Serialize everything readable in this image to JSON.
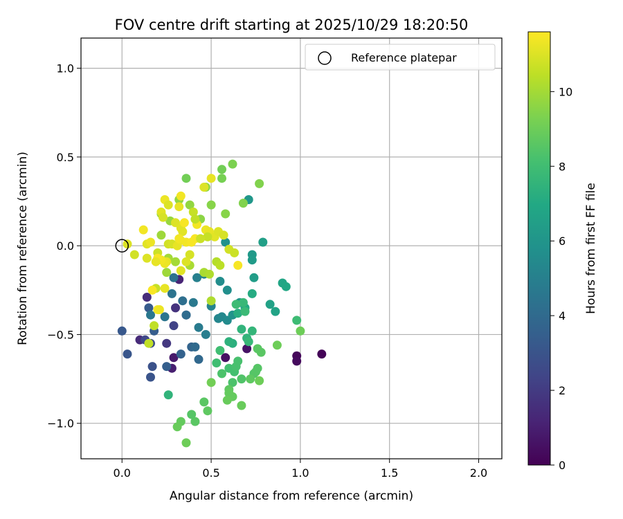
{
  "chart_data": {
    "type": "scatter",
    "title": "FOV centre drift starting at 2025/10/29 18:20:50",
    "xlabel": "Angular distance from reference (arcmin)",
    "ylabel": "Rotation from reference (arcmin)",
    "xlim": [
      -0.23,
      2.13
    ],
    "ylim": [
      -1.2,
      1.17
    ],
    "xticks": [
      0.0,
      0.5,
      1.0,
      1.5,
      2.0
    ],
    "xtick_labels": [
      "0.0",
      "0.5",
      "1.0",
      "1.5",
      "2.0"
    ],
    "yticks": [
      1.0,
      0.5,
      0.0,
      -0.5,
      -1.0
    ],
    "ytick_labels": [
      "1.0",
      "0.5",
      "0.0",
      "−0.5",
      "−1.0"
    ],
    "grid": true,
    "legend": {
      "position": "top-right",
      "label": "Reference platepar",
      "marker": "open-circle"
    },
    "reference_point": {
      "x": 0.0,
      "y": 0.0
    },
    "colorbar": {
      "label": "Hours from first FF file",
      "range": [
        0,
        11.6
      ],
      "ticks": [
        0,
        2,
        4,
        6,
        8,
        10
      ],
      "tick_labels": [
        "0",
        "2",
        "4",
        "6",
        "8",
        "10"
      ],
      "colormap": "viridis"
    },
    "points": [
      [
        1.12,
        -0.61,
        0.1
      ],
      [
        0.98,
        -0.62,
        0.2
      ],
      [
        0.98,
        -0.65,
        0.3
      ],
      [
        0.58,
        -0.63,
        0.5
      ],
      [
        0.7,
        -0.58,
        0.6
      ],
      [
        0.29,
        -0.63,
        0.8
      ],
      [
        0.28,
        -0.69,
        1.0
      ],
      [
        0.32,
        -0.19,
        1.2
      ],
      [
        0.1,
        -0.53,
        1.4
      ],
      [
        0.14,
        -0.29,
        1.5
      ],
      [
        0.3,
        -0.35,
        1.7
      ],
      [
        0.25,
        -0.55,
        1.9
      ],
      [
        0.36,
        -0.39,
        2.1
      ],
      [
        0.29,
        -0.45,
        2.3
      ],
      [
        0.13,
        -0.53,
        2.5
      ],
      [
        0.16,
        -0.55,
        2.7
      ],
      [
        0.17,
        -0.68,
        2.9
      ],
      [
        0.16,
        -0.74,
        3.0
      ],
      [
        0.03,
        -0.61,
        3.1
      ],
      [
        0.0,
        -0.48,
        3.2
      ],
      [
        0.15,
        -0.35,
        3.3
      ],
      [
        0.18,
        -0.48,
        3.4
      ],
      [
        0.25,
        -0.68,
        3.5
      ],
      [
        0.33,
        -0.61,
        3.6
      ],
      [
        0.39,
        -0.57,
        3.7
      ],
      [
        0.43,
        -0.64,
        3.9
      ],
      [
        0.41,
        -0.57,
        4.0
      ],
      [
        0.36,
        -0.39,
        4.1
      ],
      [
        0.34,
        -0.31,
        4.2
      ],
      [
        0.29,
        -0.18,
        4.3
      ],
      [
        0.28,
        -0.27,
        4.4
      ],
      [
        0.24,
        -0.4,
        4.5
      ],
      [
        0.16,
        -0.39,
        4.6
      ],
      [
        0.4,
        -0.32,
        4.7
      ],
      [
        0.43,
        -0.46,
        4.8
      ],
      [
        0.47,
        -0.5,
        4.9
      ],
      [
        0.42,
        -0.18,
        5.0
      ],
      [
        0.46,
        -0.16,
        5.1
      ],
      [
        0.5,
        -0.34,
        5.2
      ],
      [
        0.54,
        -0.41,
        5.3
      ],
      [
        0.56,
        -0.4,
        5.4
      ],
      [
        0.59,
        -0.42,
        5.5
      ],
      [
        0.55,
        -0.2,
        5.6
      ],
      [
        0.59,
        -0.25,
        5.7
      ],
      [
        0.58,
        0.02,
        5.8
      ],
      [
        0.62,
        -0.39,
        5.9
      ],
      [
        0.66,
        -0.32,
        6.0
      ],
      [
        0.71,
        0.26,
        6.1
      ],
      [
        0.73,
        -0.05,
        6.2
      ],
      [
        0.73,
        -0.08,
        6.3
      ],
      [
        0.74,
        -0.18,
        6.4
      ],
      [
        0.79,
        0.02,
        6.5
      ],
      [
        0.83,
        -0.33,
        6.6
      ],
      [
        0.86,
        -0.37,
        6.7
      ],
      [
        0.9,
        -0.21,
        6.8
      ],
      [
        0.92,
        -0.23,
        6.9
      ],
      [
        0.69,
        -0.35,
        7.0
      ],
      [
        0.73,
        -0.27,
        7.1
      ],
      [
        0.65,
        -0.38,
        7.2
      ],
      [
        0.62,
        -0.55,
        7.3
      ],
      [
        0.6,
        -0.54,
        7.4
      ],
      [
        0.67,
        -0.47,
        7.5
      ],
      [
        0.7,
        -0.52,
        7.5
      ],
      [
        0.73,
        -0.48,
        7.6
      ],
      [
        0.71,
        -0.54,
        7.7
      ],
      [
        0.68,
        -0.32,
        7.7
      ],
      [
        0.69,
        -0.37,
        7.8
      ],
      [
        0.64,
        -0.33,
        7.9
      ],
      [
        0.98,
        -0.42,
        7.9
      ],
      [
        0.55,
        -0.59,
        8.0
      ],
      [
        0.53,
        -0.66,
        8.0
      ],
      [
        0.6,
        -0.69,
        8.1
      ],
      [
        0.63,
        -0.71,
        8.1
      ],
      [
        0.64,
        -0.68,
        8.2
      ],
      [
        0.65,
        -0.65,
        8.2
      ],
      [
        0.56,
        -0.72,
        8.3
      ],
      [
        0.62,
        -0.77,
        8.3
      ],
      [
        0.67,
        -0.75,
        8.4
      ],
      [
        0.74,
        -0.72,
        8.4
      ],
      [
        0.76,
        -0.69,
        8.5
      ],
      [
        0.75,
        -0.71,
        8.5
      ],
      [
        0.78,
        -0.6,
        8.6
      ],
      [
        0.76,
        -0.58,
        8.6
      ],
      [
        0.72,
        -0.75,
        8.7
      ],
      [
        0.6,
        -0.81,
        8.7
      ],
      [
        0.6,
        -0.83,
        8.8
      ],
      [
        0.62,
        -0.85,
        8.8
      ],
      [
        0.59,
        -0.87,
        8.9
      ],
      [
        0.67,
        -0.9,
        8.9
      ],
      [
        0.77,
        -0.76,
        9.0
      ],
      [
        0.87,
        -0.56,
        9.0
      ],
      [
        1.0,
        -0.48,
        9.0
      ],
      [
        0.36,
        0.38,
        9.1
      ],
      [
        0.56,
        0.43,
        9.1
      ],
      [
        0.56,
        0.38,
        9.2
      ],
      [
        0.62,
        0.46,
        9.3
      ],
      [
        0.77,
        0.35,
        9.4
      ],
      [
        0.68,
        0.24,
        9.4
      ],
      [
        0.58,
        0.18,
        9.5
      ],
      [
        0.5,
        0.23,
        9.5
      ],
      [
        0.47,
        0.33,
        9.6
      ],
      [
        0.44,
        0.15,
        9.6
      ],
      [
        0.38,
        0.23,
        9.7
      ],
      [
        0.32,
        0.26,
        9.7
      ],
      [
        0.27,
        0.14,
        9.8
      ],
      [
        0.22,
        0.18,
        9.8
      ],
      [
        0.22,
        0.06,
        9.9
      ],
      [
        0.25,
        -0.15,
        9.9
      ],
      [
        0.26,
        -0.07,
        10.0
      ],
      [
        0.3,
        -0.09,
        10.0
      ],
      [
        0.38,
        -0.11,
        10.1
      ],
      [
        0.46,
        -0.15,
        10.1
      ],
      [
        0.49,
        -0.16,
        10.2
      ],
      [
        0.5,
        -0.31,
        10.2
      ],
      [
        0.53,
        -0.09,
        10.3
      ],
      [
        0.41,
        -0.99,
        8.6
      ],
      [
        0.39,
        -0.95,
        8.5
      ],
      [
        0.46,
        -0.88,
        8.6
      ],
      [
        0.48,
        -0.93,
        8.7
      ],
      [
        0.33,
        -0.99,
        8.8
      ],
      [
        0.31,
        -1.02,
        8.9
      ],
      [
        0.36,
        -1.11,
        9.0
      ],
      [
        0.5,
        -0.77,
        9.1
      ],
      [
        0.26,
        -0.84,
        7.5
      ],
      [
        0.55,
        -0.11,
        10.4
      ],
      [
        0.18,
        -0.45,
        10.5
      ],
      [
        0.15,
        -0.55,
        10.5
      ],
      [
        0.19,
        -0.24,
        10.6
      ],
      [
        0.2,
        -0.04,
        10.7
      ],
      [
        0.26,
        0.01,
        10.8
      ],
      [
        0.28,
        0.01,
        10.9
      ],
      [
        0.3,
        0.13,
        11.0
      ],
      [
        0.33,
        0.1,
        11.1
      ],
      [
        0.34,
        0.08,
        11.1
      ],
      [
        0.31,
        0.0,
        11.2
      ],
      [
        0.33,
        0.03,
        11.3
      ],
      [
        0.36,
        0.02,
        11.4
      ],
      [
        0.39,
        0.02,
        11.5
      ],
      [
        0.41,
        0.04,
        11.5
      ],
      [
        0.42,
        0.12,
        11.4
      ],
      [
        0.47,
        0.09,
        11.3
      ],
      [
        0.49,
        0.08,
        11.2
      ],
      [
        0.52,
        0.05,
        11.1
      ],
      [
        0.54,
        0.08,
        11.0
      ],
      [
        0.57,
        0.06,
        10.9
      ],
      [
        0.6,
        -0.02,
        10.8
      ],
      [
        0.63,
        -0.04,
        10.7
      ],
      [
        0.65,
        -0.11,
        11.5
      ],
      [
        0.46,
        0.33,
        11.0
      ],
      [
        0.5,
        0.38,
        11.2
      ],
      [
        0.4,
        0.19,
        10.6
      ],
      [
        0.41,
        0.15,
        10.5
      ],
      [
        0.48,
        0.05,
        10.6
      ],
      [
        0.44,
        0.04,
        10.7
      ],
      [
        0.38,
        -0.05,
        10.9
      ],
      [
        0.36,
        -0.09,
        11.0
      ],
      [
        0.33,
        -0.14,
        11.1
      ],
      [
        0.25,
        -0.09,
        11.2
      ],
      [
        0.24,
        -0.1,
        11.3
      ],
      [
        0.22,
        -0.08,
        11.4
      ],
      [
        0.2,
        -0.07,
        11.5
      ],
      [
        0.19,
        -0.09,
        11.2
      ],
      [
        0.14,
        -0.07,
        11.0
      ],
      [
        0.14,
        0.01,
        11.1
      ],
      [
        0.16,
        0.02,
        11.3
      ],
      [
        0.12,
        0.09,
        11.4
      ],
      [
        0.07,
        -0.05,
        10.8
      ],
      [
        0.03,
        0.01,
        11.0
      ],
      [
        0.17,
        -0.25,
        11.5
      ],
      [
        0.2,
        -0.36,
        11.4
      ],
      [
        0.21,
        -0.36,
        11.3
      ],
      [
        0.24,
        -0.24,
        11.2
      ],
      [
        0.24,
        0.26,
        11.3
      ],
      [
        0.33,
        0.28,
        11.4
      ],
      [
        0.32,
        0.22,
        11.2
      ],
      [
        0.35,
        0.13,
        11.5
      ],
      [
        0.32,
        0.04,
        11.4
      ],
      [
        0.22,
        0.19,
        11.1
      ],
      [
        0.26,
        0.23,
        11.0
      ],
      [
        0.23,
        0.16,
        10.9
      ]
    ]
  }
}
